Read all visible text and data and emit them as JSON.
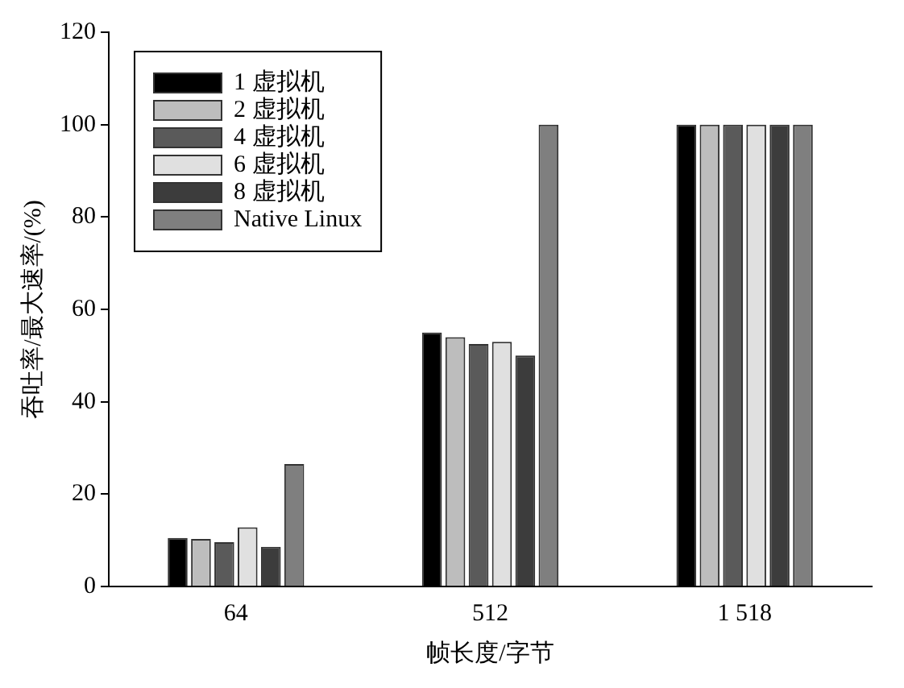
{
  "chart_data": {
    "type": "bar",
    "xlabel": "帧长度/字节",
    "ylabel": "吞吐率/最大速率/(%)",
    "categories": [
      "64",
      "512",
      "1 518"
    ],
    "series": [
      {
        "name": "1 虚拟机",
        "color": "#000000",
        "values": [
          10.5,
          55,
          100
        ]
      },
      {
        "name": "2 虚拟机",
        "color": "#bdbdbd",
        "values": [
          10.3,
          54,
          100
        ]
      },
      {
        "name": "4 虚拟机",
        "color": "#5a5a5a",
        "values": [
          9.6,
          52.5,
          100
        ]
      },
      {
        "name": "6 虚拟机",
        "color": "#e0e0e0",
        "values": [
          12.8,
          53,
          100
        ]
      },
      {
        "name": "8 虚拟机",
        "color": "#3c3c3c",
        "values": [
          8.6,
          50,
          100
        ]
      },
      {
        "name": "Native Linux",
        "color": "#7f7f7f",
        "values": [
          26.5,
          100,
          100
        ]
      }
    ],
    "ylim": [
      0,
      120
    ],
    "yticks": [
      0,
      20,
      40,
      60,
      80,
      100,
      120
    ],
    "grid": false,
    "legend": "top left"
  }
}
